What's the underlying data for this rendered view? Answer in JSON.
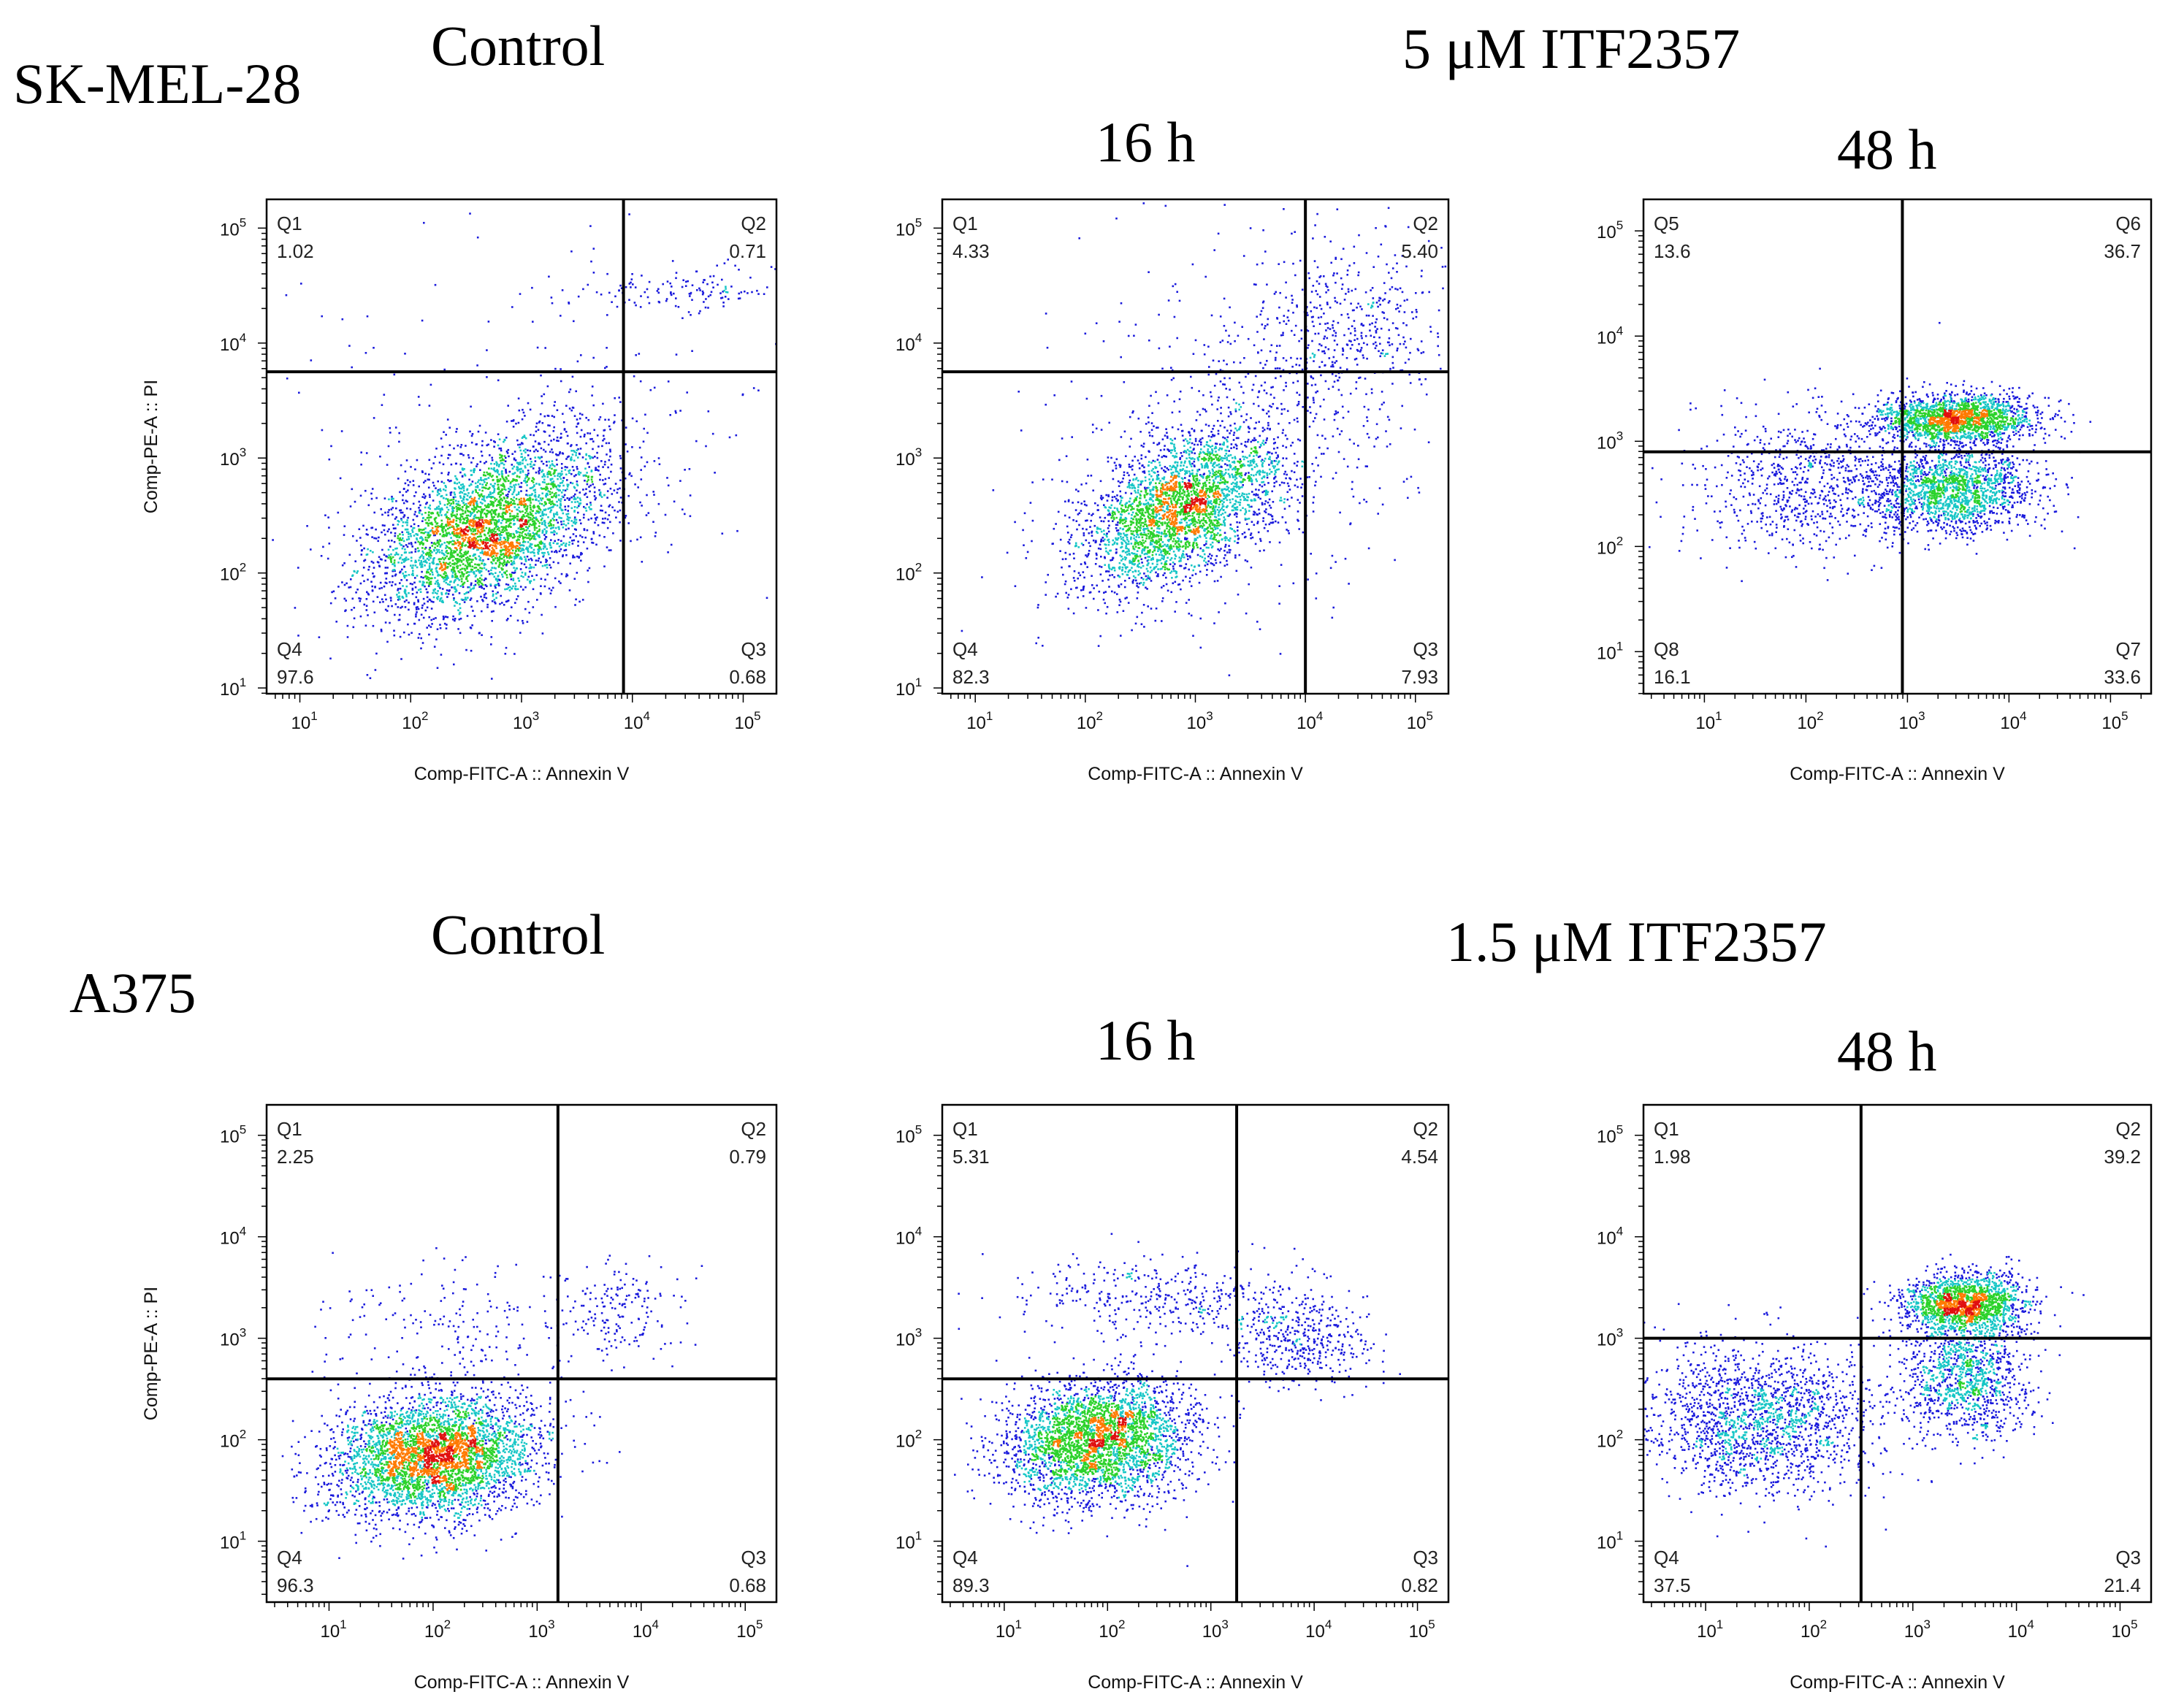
{
  "labels": {
    "cell_line_1": "SK-MEL-28",
    "cell_line_2": "A375",
    "control_1": "Control",
    "control_2": "Control",
    "treatment_1": "5 μM ITF2357",
    "treatment_2": "1.5 μM ITF2357",
    "time_16h_1": "16 h",
    "time_48h_1": "48 h",
    "time_16h_2": "16 h",
    "time_48h_2": "48 h"
  },
  "colors": {
    "dots_low": "#1a1adc",
    "dots_mid": "#17c6c6",
    "dots_high": "#2bd22b",
    "dots_peak": "#ff7a00",
    "dots_max": "#e01010",
    "frame": "#000000"
  },
  "chart_data": [
    {
      "type": "scatter",
      "panel": "SK-MEL-28 Control",
      "xlabel": "Comp-FITC-A :: Annexin V",
      "ylabel": "Comp-PE-A :: PI",
      "xlim_log10": [
        0.7,
        5.3
      ],
      "ylim_log10": [
        0.95,
        5.25
      ],
      "x_ticks": [
        "1",
        "2",
        "3",
        "4",
        "5"
      ],
      "y_ticks": [
        "1",
        "2",
        "3",
        "4",
        "5"
      ],
      "gate_x_log10": 3.92,
      "gate_y_log10": 3.75,
      "quadrants": [
        {
          "name": "Q1",
          "value": "1.02",
          "pos": "top-left"
        },
        {
          "name": "Q2",
          "value": "0.71",
          "pos": "top-right"
        },
        {
          "name": "Q3",
          "value": "0.68",
          "pos": "bottom-right"
        },
        {
          "name": "Q4",
          "value": "97.6",
          "pos": "bottom-left"
        }
      ],
      "clusters": [
        {
          "cx": 2.7,
          "cy": 2.4,
          "sx": 0.55,
          "sy": 0.38,
          "n": 3800,
          "rho": 0.45
        },
        {
          "cx": 4.45,
          "cy": 4.45,
          "sx": 0.55,
          "sy": 0.1,
          "n": 140,
          "rho": 0.0
        },
        {
          "cx": 3.0,
          "cy": 3.3,
          "sx": 1.2,
          "sy": 0.7,
          "n": 250,
          "rho": 0.0
        }
      ]
    },
    {
      "type": "scatter",
      "panel": "SK-MEL-28 5 μM ITF2357 16 h",
      "xlabel": "Comp-FITC-A :: Annexin V",
      "ylabel": "",
      "xlim_log10": [
        0.7,
        5.3
      ],
      "ylim_log10": [
        0.95,
        5.25
      ],
      "x_ticks": [
        "1",
        "2",
        "3",
        "4",
        "5"
      ],
      "y_ticks": [
        "1",
        "2",
        "3",
        "4",
        "5"
      ],
      "gate_x_log10": 4.0,
      "gate_y_log10": 3.75,
      "quadrants": [
        {
          "name": "Q1",
          "value": "4.33",
          "pos": "top-left"
        },
        {
          "name": "Q2",
          "value": "5.40",
          "pos": "top-right"
        },
        {
          "name": "Q3",
          "value": "7.93",
          "pos": "bottom-right"
        },
        {
          "name": "Q4",
          "value": "82.3",
          "pos": "bottom-left"
        }
      ],
      "clusters": [
        {
          "cx": 2.85,
          "cy": 2.55,
          "sx": 0.45,
          "sy": 0.35,
          "n": 3000,
          "rho": 0.5
        },
        {
          "cx": 4.4,
          "cy": 4.1,
          "sx": 0.5,
          "sy": 0.35,
          "n": 420,
          "rho": 0.0
        },
        {
          "cx": 3.5,
          "cy": 3.3,
          "sx": 0.9,
          "sy": 0.8,
          "n": 600,
          "rho": 0.2
        }
      ]
    },
    {
      "type": "scatter",
      "panel": "SK-MEL-28 5 μM ITF2357 48 h",
      "xlabel": "Comp-FITC-A :: Annexin V",
      "ylabel": "",
      "xlim_log10": [
        0.4,
        5.4
      ],
      "ylim_log10": [
        0.6,
        5.3
      ],
      "x_ticks": [
        "1",
        "2",
        "3",
        "4",
        "5"
      ],
      "y_ticks": [
        "1",
        "2",
        "3",
        "4",
        "5"
      ],
      "gate_x_log10": 2.95,
      "gate_y_log10": 2.9,
      "quadrants": [
        {
          "name": "Q5",
          "value": "13.6",
          "pos": "top-left"
        },
        {
          "name": "Q6",
          "value": "36.7",
          "pos": "top-right"
        },
        {
          "name": "Q7",
          "value": "33.6",
          "pos": "bottom-right"
        },
        {
          "name": "Q8",
          "value": "16.1",
          "pos": "bottom-left"
        }
      ],
      "clusters": [
        {
          "cx": 3.45,
          "cy": 3.22,
          "sx": 0.4,
          "sy": 0.12,
          "n": 1900,
          "rho": 0.0
        },
        {
          "cx": 3.45,
          "cy": 2.55,
          "sx": 0.4,
          "sy": 0.2,
          "n": 1700,
          "rho": 0.0
        },
        {
          "cx": 2.0,
          "cy": 2.6,
          "sx": 0.55,
          "sy": 0.35,
          "n": 800,
          "rho": 0.0
        }
      ]
    },
    {
      "type": "scatter",
      "panel": "A375 Control",
      "xlabel": "Comp-FITC-A :: Annexin V",
      "ylabel": "Comp-PE-A :: PI",
      "xlim_log10": [
        0.4,
        5.3
      ],
      "ylim_log10": [
        0.4,
        5.3
      ],
      "x_ticks": [
        "1",
        "2",
        "3",
        "4",
        "5"
      ],
      "y_ticks": [
        "1",
        "2",
        "3",
        "4",
        "5"
      ],
      "gate_x_log10": 3.2,
      "gate_y_log10": 2.6,
      "quadrants": [
        {
          "name": "Q1",
          "value": "2.25",
          "pos": "top-left"
        },
        {
          "name": "Q2",
          "value": "0.79",
          "pos": "top-right"
        },
        {
          "name": "Q3",
          "value": "0.68",
          "pos": "bottom-right"
        },
        {
          "name": "Q4",
          "value": "96.3",
          "pos": "bottom-left"
        }
      ],
      "clusters": [
        {
          "cx": 2.0,
          "cy": 1.85,
          "sx": 0.5,
          "sy": 0.3,
          "n": 3800,
          "rho": 0.15
        },
        {
          "cx": 3.8,
          "cy": 3.3,
          "sx": 0.3,
          "sy": 0.25,
          "n": 180,
          "rho": 0.0
        },
        {
          "cx": 2.0,
          "cy": 3.1,
          "sx": 0.6,
          "sy": 0.3,
          "n": 180,
          "rho": 0.0
        }
      ]
    },
    {
      "type": "scatter",
      "panel": "A375 1.5 μM ITF2357 16 h",
      "xlabel": "Comp-FITC-A :: Annexin V",
      "ylabel": "",
      "xlim_log10": [
        0.4,
        5.3
      ],
      "ylim_log10": [
        0.4,
        5.3
      ],
      "x_ticks": [
        "1",
        "2",
        "3",
        "4",
        "5"
      ],
      "y_ticks": [
        "1",
        "2",
        "3",
        "4",
        "5"
      ],
      "gate_x_log10": 3.25,
      "gate_y_log10": 2.6,
      "quadrants": [
        {
          "name": "Q1",
          "value": "5.31",
          "pos": "top-left"
        },
        {
          "name": "Q2",
          "value": "4.54",
          "pos": "top-right"
        },
        {
          "name": "Q3",
          "value": "0.82",
          "pos": "bottom-right"
        },
        {
          "name": "Q4",
          "value": "89.3",
          "pos": "bottom-left"
        }
      ],
      "clusters": [
        {
          "cx": 1.9,
          "cy": 2.0,
          "sx": 0.45,
          "sy": 0.3,
          "n": 3200,
          "rho": 0.15
        },
        {
          "cx": 3.85,
          "cy": 3.0,
          "sx": 0.35,
          "sy": 0.22,
          "n": 420,
          "rho": 0.0
        },
        {
          "cx": 2.5,
          "cy": 3.4,
          "sx": 0.7,
          "sy": 0.2,
          "n": 400,
          "rho": 0.0
        }
      ]
    },
    {
      "type": "scatter",
      "panel": "A375 1.5 μM ITF2357 48 h",
      "xlabel": "Comp-FITC-A :: Annexin V",
      "ylabel": "",
      "xlim_log10": [
        0.4,
        5.3
      ],
      "ylim_log10": [
        0.4,
        5.3
      ],
      "x_ticks": [
        "1",
        "2",
        "3",
        "4",
        "5"
      ],
      "y_ticks": [
        "1",
        "2",
        "3",
        "4",
        "5"
      ],
      "gate_x_log10": 2.5,
      "gate_y_log10": 3.0,
      "quadrants": [
        {
          "name": "Q1",
          "value": "1.98",
          "pos": "top-left"
        },
        {
          "name": "Q2",
          "value": "39.2",
          "pos": "top-right"
        },
        {
          "name": "Q3",
          "value": "21.4",
          "pos": "bottom-right"
        },
        {
          "name": "Q4",
          "value": "37.5",
          "pos": "bottom-left"
        }
      ],
      "clusters": [
        {
          "cx": 3.5,
          "cy": 3.35,
          "sx": 0.3,
          "sy": 0.15,
          "n": 1700,
          "rho": 0.0
        },
        {
          "cx": 3.5,
          "cy": 2.6,
          "sx": 0.3,
          "sy": 0.28,
          "n": 1100,
          "rho": 0.0
        },
        {
          "cx": 1.5,
          "cy": 2.2,
          "sx": 0.55,
          "sy": 0.35,
          "n": 1800,
          "rho": 0.0
        }
      ]
    }
  ]
}
